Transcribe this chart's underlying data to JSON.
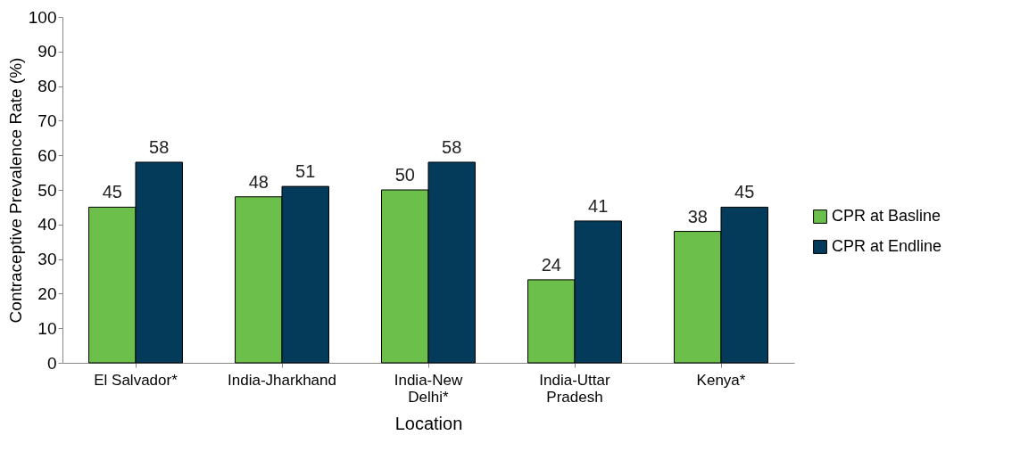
{
  "chart_data": {
    "type": "bar",
    "xlabel": "Location",
    "ylabel": "Contraceptive Prevalence Rate (%)",
    "categories": [
      "El Salvador*",
      "India-Jharkhand",
      "India-New Delhi*",
      "India-Uttar Pradesh",
      "Kenya*"
    ],
    "series": [
      {
        "name": "CPR at Basline",
        "color": "#6cbf4a",
        "values": [
          45,
          48,
          50,
          24,
          38
        ]
      },
      {
        "name": "CPR at Endline",
        "color": "#043a5a",
        "values": [
          58,
          51,
          58,
          41,
          45
        ]
      }
    ],
    "ylim": [
      0,
      100
    ],
    "yticks": [
      0,
      10,
      20,
      30,
      40,
      50,
      60,
      70,
      80,
      90,
      100
    ],
    "grid": false,
    "legend": "right",
    "data_labels": true
  }
}
